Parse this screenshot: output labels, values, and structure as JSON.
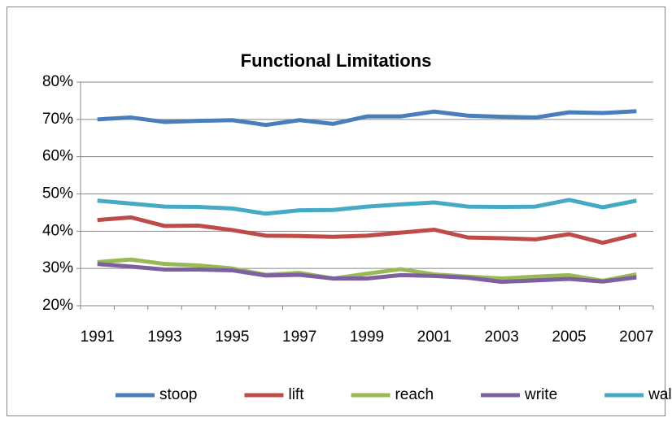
{
  "chart_data": {
    "type": "line",
    "title": "Functional Limitations",
    "categories": [
      "1991",
      null,
      "1993",
      null,
      "1995",
      null,
      "1997",
      null,
      "1999",
      null,
      "2001",
      null,
      "2003",
      null,
      "2005",
      null,
      "2007"
    ],
    "series": [
      {
        "name": "stoop",
        "color": "#4a7ebb",
        "values": [
          70,
          70.5,
          69.3,
          69.6,
          69.8,
          68.5,
          69.8,
          68.8,
          70.8,
          70.8,
          72.1,
          71,
          70.7,
          70.5,
          71.9,
          71.7,
          72.2
        ]
      },
      {
        "name": "lift",
        "color": "#be4b48",
        "values": [
          43,
          43.7,
          41.4,
          41.5,
          40.3,
          38.8,
          38.7,
          38.5,
          38.8,
          39.6,
          40.4,
          38.3,
          38.1,
          37.8,
          39.2,
          36.9,
          39.1
        ]
      },
      {
        "name": "reach",
        "color": "#98b954",
        "values": [
          31.7,
          32.4,
          31.2,
          30.8,
          30,
          28.3,
          28.8,
          27.3,
          28.6,
          29.8,
          28.4,
          27.8,
          27.3,
          27.8,
          28.2,
          26.7,
          28.4
        ]
      },
      {
        "name": "write",
        "color": "#7d60a0",
        "values": [
          31.2,
          30.5,
          29.7,
          29.7,
          29.5,
          28.1,
          28.3,
          27.3,
          27.3,
          28.2,
          28,
          27.5,
          26.4,
          26.8,
          27.2,
          26.5,
          27.6
        ]
      },
      {
        "name": "walk",
        "color": "#46aac5",
        "values": [
          48.2,
          47.4,
          46.6,
          46.5,
          46.1,
          44.7,
          45.6,
          45.7,
          46.6,
          47.2,
          47.7,
          46.6,
          46.5,
          46.6,
          48.4,
          46.4,
          48.2
        ]
      }
    ],
    "ylim": [
      20,
      80
    ],
    "yticks": [
      {
        "value": 20,
        "label": "20%"
      },
      {
        "value": 30,
        "label": "30%"
      },
      {
        "value": 40,
        "label": "40%"
      },
      {
        "value": 50,
        "label": "50%"
      },
      {
        "value": 60,
        "label": "60%"
      },
      {
        "value": 70,
        "label": "70%"
      },
      {
        "value": 80,
        "label": "80%"
      }
    ],
    "grid": true,
    "legend": "bottom"
  }
}
